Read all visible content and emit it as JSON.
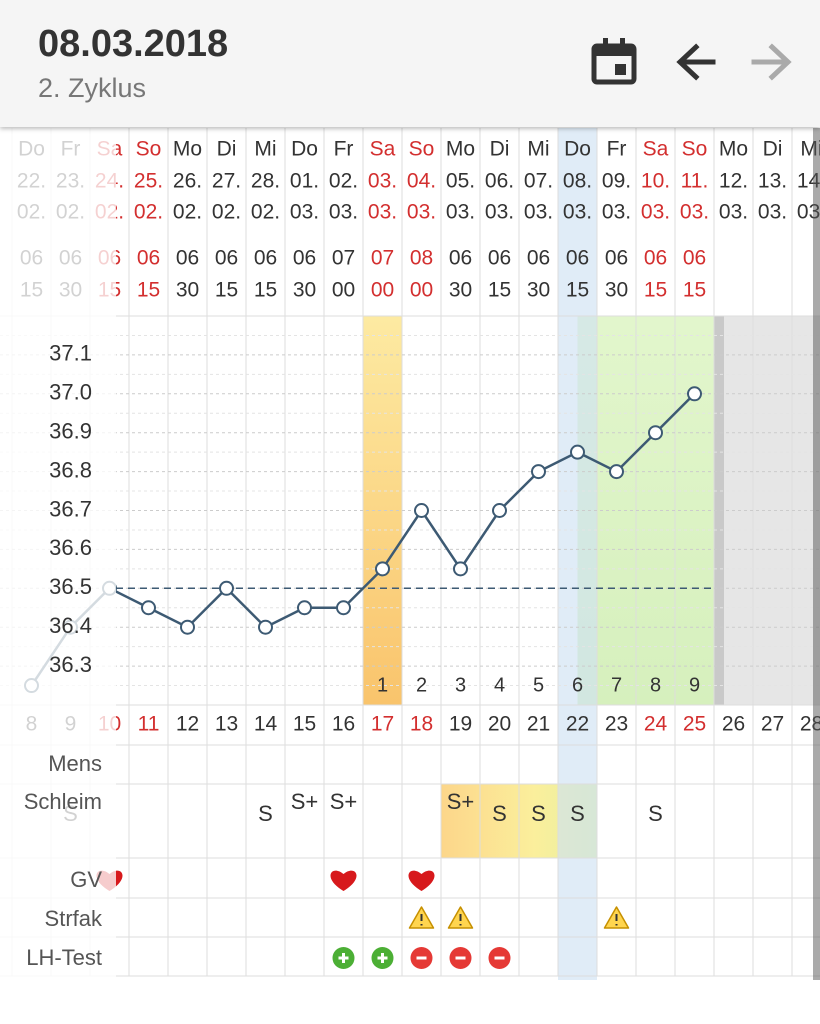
{
  "header": {
    "date": "08.03.2018",
    "cycle": "2. Zyklus"
  },
  "chart_data": {
    "type": "line",
    "categories": [
      8,
      9,
      10,
      11,
      12,
      13,
      14,
      15,
      16,
      17,
      18,
      19,
      20,
      21,
      22,
      23,
      24,
      25,
      26,
      27,
      28
    ],
    "weekdays": [
      "Do",
      "Fr",
      "Sa",
      "So",
      "Mo",
      "Di",
      "Mi",
      "Do",
      "Fr",
      "Sa",
      "So",
      "Mo",
      "Di",
      "Mi",
      "Do",
      "Fr",
      "Sa",
      "So",
      "Mo",
      "Di",
      "Mi"
    ],
    "days": [
      "22.",
      "23.",
      "24.",
      "25.",
      "26.",
      "27.",
      "28.",
      "01.",
      "02.",
      "03.",
      "04.",
      "05.",
      "06.",
      "07.",
      "08.",
      "09.",
      "10.",
      "11.",
      "12.",
      "13.",
      "14."
    ],
    "months": [
      "02.",
      "02.",
      "02.",
      "02.",
      "02.",
      "02.",
      "02.",
      "03.",
      "03.",
      "03.",
      "03.",
      "03.",
      "03.",
      "03.",
      "03.",
      "03.",
      "03.",
      "03.",
      "03.",
      "03.",
      "03."
    ],
    "hours": [
      "06",
      "06",
      "06",
      "06",
      "06",
      "06",
      "06",
      "06",
      "07",
      "07",
      "08",
      "06",
      "06",
      "06",
      "06",
      "06",
      "06",
      "06",
      null,
      null,
      null
    ],
    "minutes": [
      "15",
      "30",
      "15",
      "15",
      "30",
      "15",
      "15",
      "30",
      "00",
      "00",
      "00",
      "30",
      "15",
      "30",
      "15",
      "30",
      "15",
      "15",
      null,
      null,
      null
    ],
    "values": [
      36.25,
      36.4,
      36.5,
      36.45,
      36.4,
      36.5,
      36.4,
      36.45,
      36.45,
      36.55,
      36.7,
      36.55,
      36.7,
      36.8,
      36.85,
      36.8,
      36.9,
      37.0,
      null,
      null,
      null
    ],
    "color": "#3d5a73",
    "ylim": [
      36.2,
      37.2
    ],
    "yticks": [
      36.3,
      36.4,
      36.5,
      36.6,
      36.7,
      36.8,
      36.9,
      {
        "value": 37,
        "label": "37.0"
      },
      37.1
    ],
    "coverline": 36.5,
    "high_counts": [
      null,
      null,
      null,
      null,
      null,
      null,
      null,
      null,
      null,
      1,
      2,
      3,
      4,
      5,
      6,
      7,
      8,
      9,
      null,
      null,
      null
    ],
    "grid": true
  },
  "rows": {
    "labels": [
      "Mens",
      "Schleim",
      "GV",
      "Strfak",
      "LH-Test"
    ],
    "schleim": [
      null,
      "S",
      null,
      null,
      null,
      null,
      "S",
      "S+",
      "S+",
      null,
      null,
      "S+",
      "S",
      "S",
      "S",
      null,
      "S",
      null,
      null,
      null,
      null
    ],
    "gv": [
      null,
      null,
      true,
      null,
      null,
      null,
      null,
      null,
      true,
      null,
      true,
      null,
      null,
      null,
      null,
      null,
      null,
      null,
      null,
      null,
      null
    ],
    "strfak": [
      null,
      null,
      null,
      null,
      null,
      null,
      null,
      null,
      null,
      null,
      true,
      true,
      null,
      null,
      null,
      true,
      null,
      null,
      null,
      null,
      null
    ],
    "lh": [
      null,
      null,
      null,
      null,
      null,
      null,
      null,
      null,
      true,
      true,
      false,
      false,
      false,
      null,
      null,
      null,
      null,
      null,
      null,
      null,
      null
    ]
  }
}
